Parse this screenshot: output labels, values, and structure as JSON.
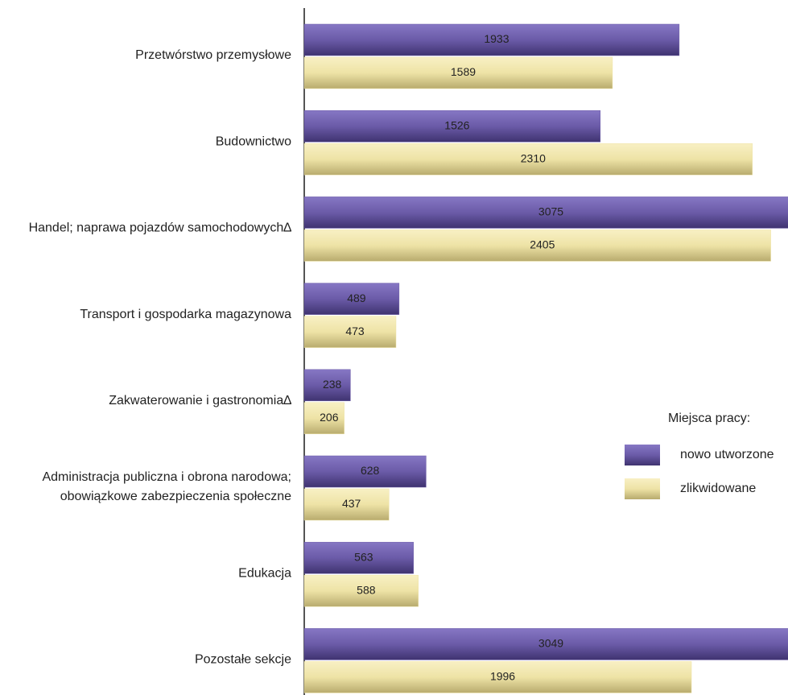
{
  "chart_data": {
    "type": "bar",
    "orientation": "horizontal",
    "categories": [
      "Przetwórstwo przemysłowe",
      "Budownictwo",
      "Handel; naprawa pojazdów samochodowych∆",
      "Transport i gospodarka magazynowa",
      "Zakwaterowanie i gastronomia∆",
      "Administracja publiczna i obrona narodowa;\nobowiązkowe zabezpieczenia społeczne",
      "Edukacja",
      "Pozostałe sekcje"
    ],
    "series": [
      {
        "name": "nowo utworzone",
        "color": "#6b5ba8",
        "values": [
          1933,
          1526,
          3075,
          489,
          238,
          628,
          563,
          3049
        ]
      },
      {
        "name": "zlikwidowane",
        "color": "#eee3a6",
        "values": [
          1589,
          2310,
          2405,
          473,
          206,
          437,
          588,
          1996
        ]
      }
    ],
    "legend_title": "Miejsca pracy:",
    "legend": "right"
  }
}
